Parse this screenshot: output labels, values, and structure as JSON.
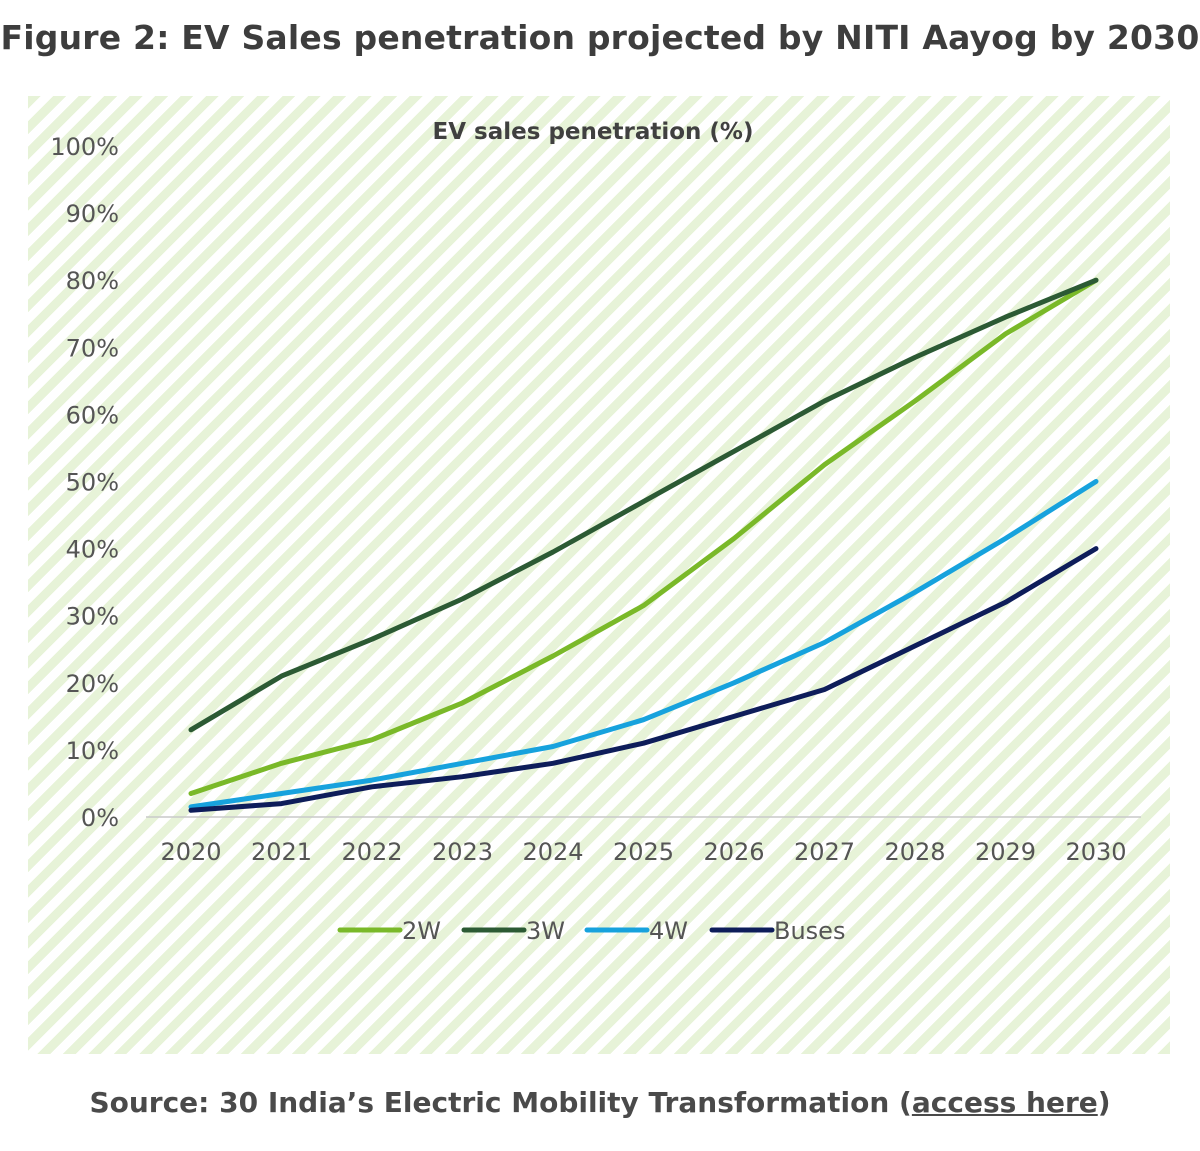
{
  "figure": {
    "title": "Figure 2: EV Sales penetration projected by NITI Aayog by 2030",
    "source_prefix": "Source: 30 India’s Electric Mobility Transformation (",
    "source_link": "access here",
    "source_suffix": ")"
  },
  "chart_data": {
    "type": "line",
    "title": "EV sales penetration (%)",
    "xlabel": "",
    "ylabel": "",
    "x": [
      "2020",
      "2021",
      "2022",
      "2023",
      "2024",
      "2025",
      "2026",
      "2027",
      "2028",
      "2029",
      "2030"
    ],
    "ylim": [
      0,
      100
    ],
    "y_ticks": [
      "0%",
      "10%",
      "20%",
      "30%",
      "40%",
      "50%",
      "60%",
      "70%",
      "80%",
      "90%",
      "100%"
    ],
    "grid": false,
    "legend_position": "bottom",
    "series": [
      {
        "name": "2W",
        "color": "#7ab929",
        "values": [
          3.5,
          8,
          11.5,
          17,
          24,
          31.5,
          41.5,
          52.5,
          62,
          72,
          80
        ]
      },
      {
        "name": "3W",
        "color": "#2c5a34",
        "values": [
          13,
          21,
          26.5,
          32.5,
          39.5,
          47,
          54.5,
          62,
          68.5,
          74.5,
          80
        ]
      },
      {
        "name": "4W",
        "color": "#17a2dd",
        "values": [
          1.5,
          3.5,
          5.5,
          8,
          10.5,
          14.5,
          20,
          26,
          33.5,
          41.5,
          50
        ]
      },
      {
        "name": "Buses",
        "color": "#0e1d5a",
        "values": [
          1,
          2,
          4.5,
          6,
          8,
          11,
          15,
          19,
          25.5,
          32,
          40
        ]
      }
    ]
  }
}
